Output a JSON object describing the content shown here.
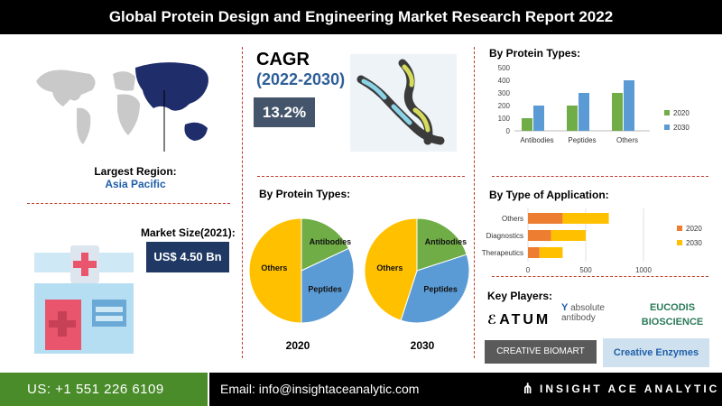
{
  "header": {
    "title": "Global Protein Design and Engineering Market Research Report 2022"
  },
  "region": {
    "label": "Largest Region:",
    "value": "Asia Pacific"
  },
  "market_size": {
    "label": "Market Size(2021):",
    "value": "US$ 4.50 Bn"
  },
  "cagr": {
    "label": "CAGR",
    "years": "(2022-2030)",
    "value": "13.2%"
  },
  "pie_section": {
    "title": "By Protein Types:",
    "year1": "2020",
    "year2": "2030"
  },
  "bar_section": {
    "title": "By Protein Types:"
  },
  "app_section": {
    "title": "By Type of Application:"
  },
  "players": {
    "title": "Key Players:",
    "items": [
      "ATUM",
      "absolute antibody",
      "EUCODIS BIOSCIENCE",
      "CREATIVE BIOMART",
      "Creative Enzymes"
    ]
  },
  "footer": {
    "phone": "US: +1 551 226 6109",
    "email": "Email: info@insightaceanalytic.com",
    "brand": "INSIGHT ACE ANALYTIC"
  },
  "colors": {
    "c2020": "#70ad47",
    "c2030": "#5b9bd5",
    "cOrange": "#ed7d31",
    "cYellow": "#ffc000"
  },
  "chart_data": [
    {
      "type": "bar",
      "title": "By Protein Types:",
      "categories": [
        "Antibodies",
        "Peptides",
        "Others"
      ],
      "series": [
        {
          "name": "2020",
          "values": [
            100,
            200,
            300
          ]
        },
        {
          "name": "2030",
          "values": [
            200,
            300,
            400
          ]
        }
      ],
      "ylim": [
        0,
        500
      ],
      "yticks": [
        "0",
        "100",
        "200",
        "300",
        "400",
        "500"
      ],
      "legend": "right"
    },
    {
      "type": "bar",
      "orientation": "horizontal",
      "stacked": true,
      "title": "By Type of Application:",
      "categories": [
        "Others",
        "Diagnostics",
        "Therapeutics"
      ],
      "series": [
        {
          "name": "2020",
          "values": [
            300,
            200,
            100
          ]
        },
        {
          "name": "2030",
          "values": [
            400,
            300,
            200
          ]
        }
      ],
      "xlim": [
        0,
        1000
      ],
      "xticks": [
        "0",
        "500",
        "1000"
      ],
      "legend": "right"
    },
    {
      "type": "pie",
      "label": "2020",
      "slices": [
        {
          "name": "Antibodies",
          "value": 18
        },
        {
          "name": "Peptides",
          "value": 32
        },
        {
          "name": "Others",
          "value": 50
        }
      ]
    },
    {
      "type": "pie",
      "label": "2030",
      "slices": [
        {
          "name": "Antibodies",
          "value": 20
        },
        {
          "name": "Peptides",
          "value": 35
        },
        {
          "name": "Others",
          "value": 45
        }
      ]
    }
  ]
}
